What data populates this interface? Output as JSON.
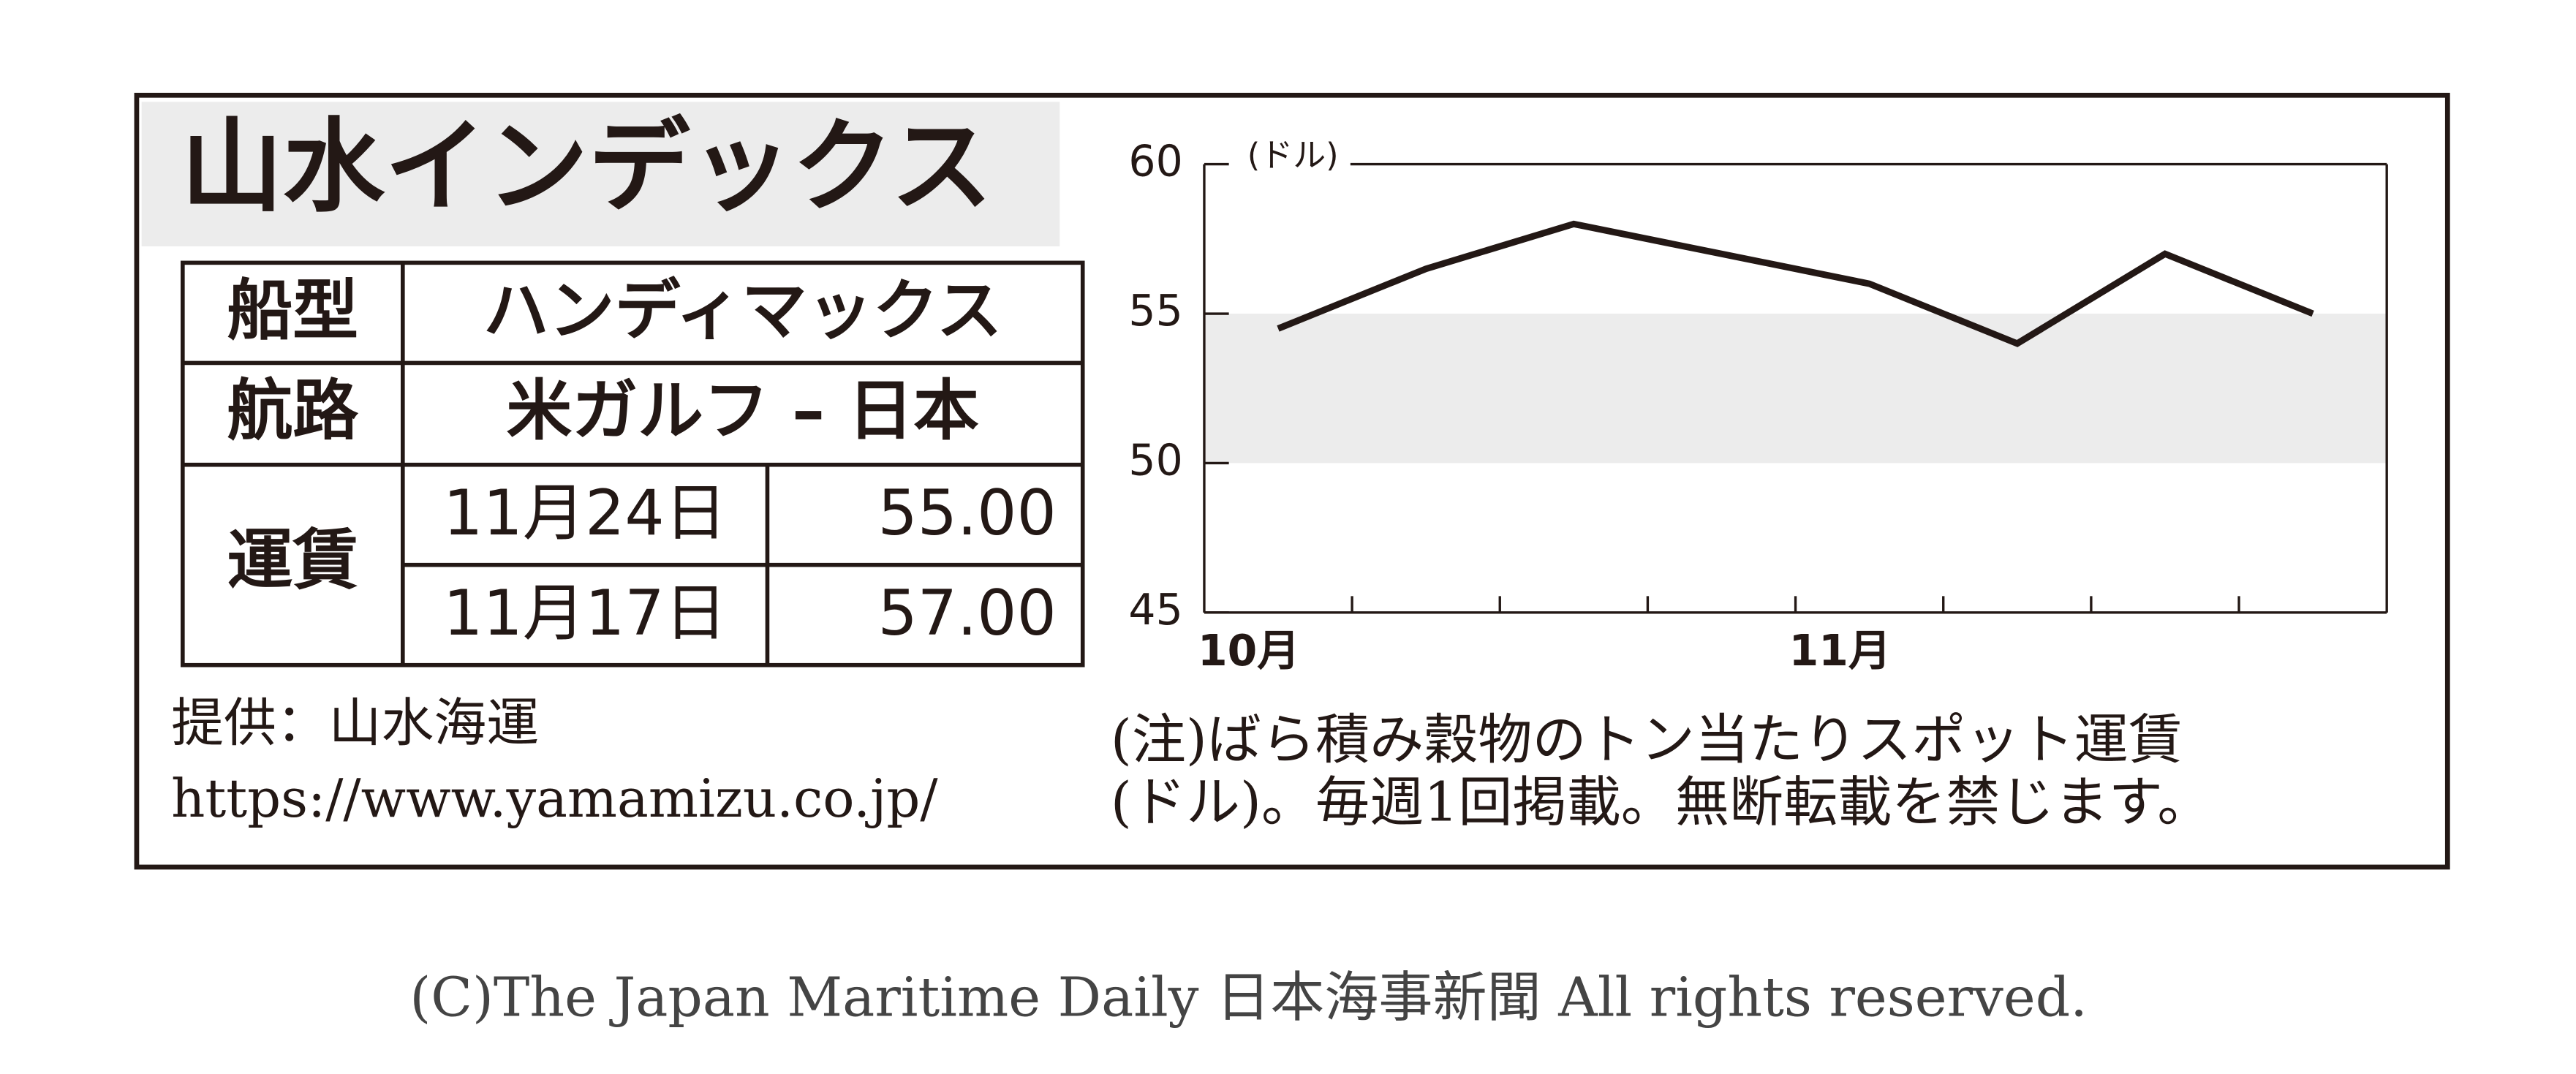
{
  "header": {
    "title": "山水インデックス"
  },
  "table": {
    "rows": [
      [
        "船型",
        "ハンディマックス"
      ],
      [
        "航路",
        "米ガルフ – 日本"
      ],
      [
        "運賃",
        "11月24日",
        "55.00"
      ],
      [
        "11月17日",
        "57.00"
      ]
    ]
  },
  "provider": {
    "line1": "提供：山水海運",
    "url": "https://www.yamamizu.co.jp/"
  },
  "note": {
    "line1": "(注)ばら積み穀物のトン当たりスポット運賃",
    "line2": "(ドル)。毎週1回掲載。無断転載を禁じます。"
  },
  "copyright": "(C)The Japan Maritime Daily 日本海事新聞 All rights reserved.",
  "chart_data": {
    "type": "line",
    "y_label": "(ドル)",
    "categories": [
      "10月",
      null,
      null,
      null,
      "11月",
      null,
      null,
      null
    ],
    "values": [
      54.5,
      56.5,
      58,
      57,
      56,
      54,
      57,
      55
    ],
    "color": "#231815",
    "ylim": [
      45,
      60
    ],
    "yticks": [
      45,
      50,
      55,
      60
    ],
    "shade": [
      50,
      55
    ],
    "shade_color": "#ececec"
  }
}
